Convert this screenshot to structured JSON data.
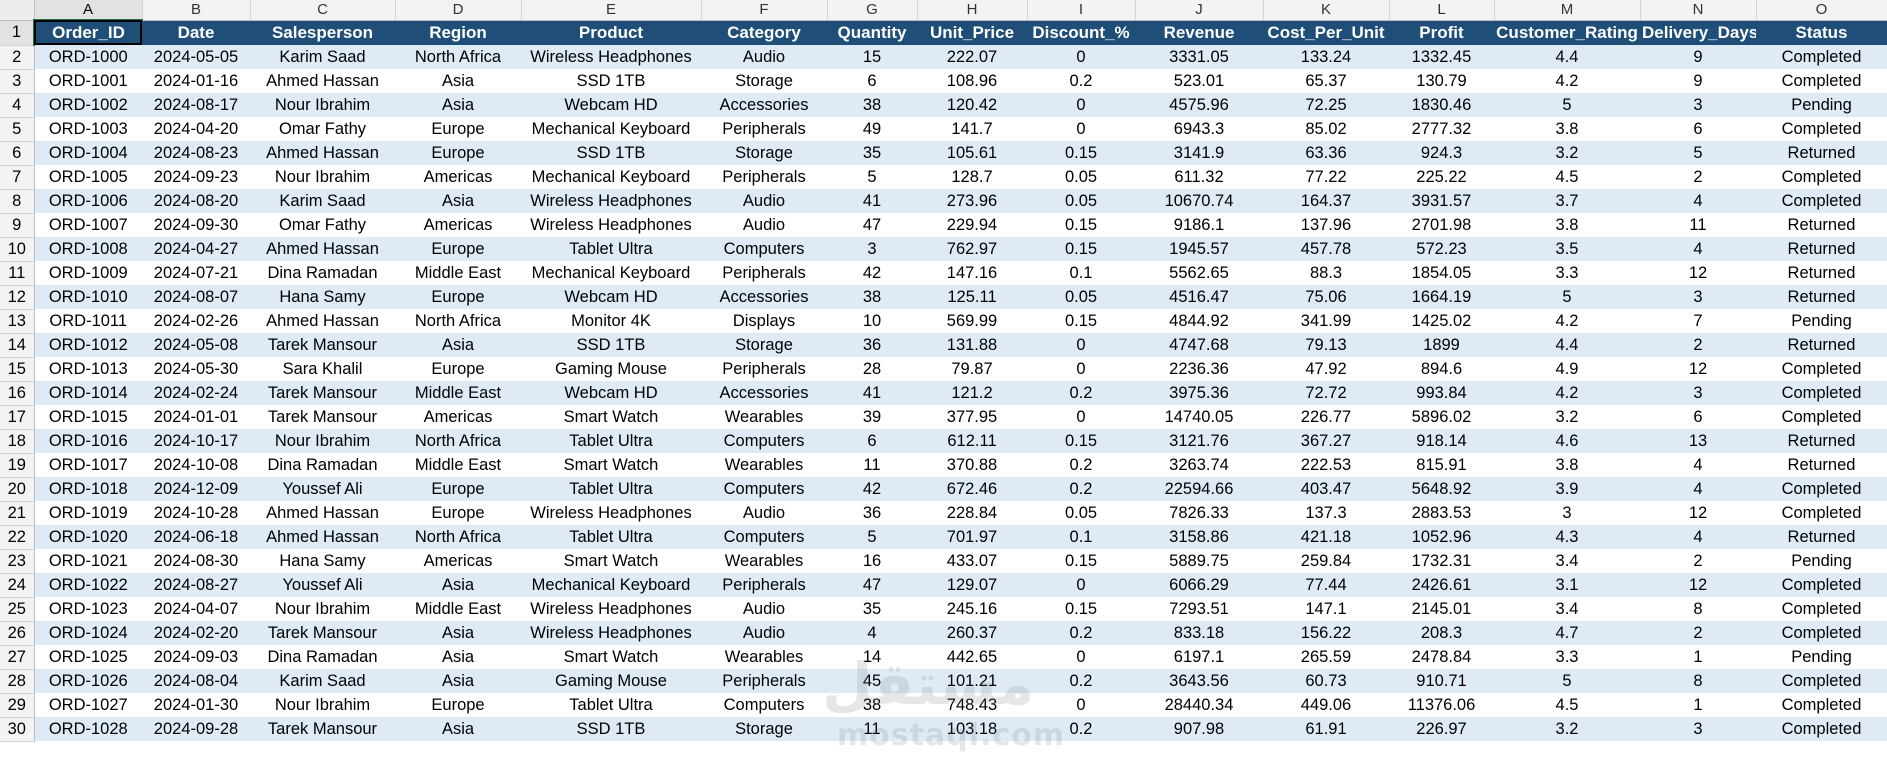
{
  "spreadsheet": {
    "column_letters": [
      "A",
      "B",
      "C",
      "D",
      "E",
      "F",
      "G",
      "H",
      "I",
      "J",
      "K",
      "L",
      "M",
      "N",
      "O"
    ],
    "active_column": "A",
    "active_row": 1,
    "headers": [
      "Order_ID",
      "Date",
      "Salesperson",
      "Region",
      "Product",
      "Category",
      "Quantity",
      "Unit_Price",
      "Discount_%",
      "Revenue",
      "Cost_Per_Unit",
      "Profit",
      "Customer_Rating",
      "Delivery_Days",
      "Status"
    ],
    "rows": [
      {
        "num": 2,
        "cells": [
          "ORD-1000",
          "2024-05-05",
          "Karim Saad",
          "North Africa",
          "Wireless Headphones",
          "Audio",
          "15",
          "222.07",
          "0",
          "3331.05",
          "133.24",
          "1332.45",
          "4.4",
          "9",
          "Completed"
        ]
      },
      {
        "num": 3,
        "cells": [
          "ORD-1001",
          "2024-01-16",
          "Ahmed Hassan",
          "Asia",
          "SSD 1TB",
          "Storage",
          "6",
          "108.96",
          "0.2",
          "523.01",
          "65.37",
          "130.79",
          "4.2",
          "9",
          "Completed"
        ]
      },
      {
        "num": 4,
        "cells": [
          "ORD-1002",
          "2024-08-17",
          "Nour Ibrahim",
          "Asia",
          "Webcam HD",
          "Accessories",
          "38",
          "120.42",
          "0",
          "4575.96",
          "72.25",
          "1830.46",
          "5",
          "3",
          "Pending"
        ]
      },
      {
        "num": 5,
        "cells": [
          "ORD-1003",
          "2024-04-20",
          "Omar Fathy",
          "Europe",
          "Mechanical Keyboard",
          "Peripherals",
          "49",
          "141.7",
          "0",
          "6943.3",
          "85.02",
          "2777.32",
          "3.8",
          "6",
          "Completed"
        ]
      },
      {
        "num": 6,
        "cells": [
          "ORD-1004",
          "2024-08-23",
          "Ahmed Hassan",
          "Europe",
          "SSD 1TB",
          "Storage",
          "35",
          "105.61",
          "0.15",
          "3141.9",
          "63.36",
          "924.3",
          "3.2",
          "5",
          "Returned"
        ]
      },
      {
        "num": 7,
        "cells": [
          "ORD-1005",
          "2024-09-23",
          "Nour Ibrahim",
          "Americas",
          "Mechanical Keyboard",
          "Peripherals",
          "5",
          "128.7",
          "0.05",
          "611.32",
          "77.22",
          "225.22",
          "4.5",
          "2",
          "Completed"
        ]
      },
      {
        "num": 8,
        "cells": [
          "ORD-1006",
          "2024-08-20",
          "Karim Saad",
          "Asia",
          "Wireless Headphones",
          "Audio",
          "41",
          "273.96",
          "0.05",
          "10670.74",
          "164.37",
          "3931.57",
          "3.7",
          "4",
          "Completed"
        ]
      },
      {
        "num": 9,
        "cells": [
          "ORD-1007",
          "2024-09-30",
          "Omar Fathy",
          "Americas",
          "Wireless Headphones",
          "Audio",
          "47",
          "229.94",
          "0.15",
          "9186.1",
          "137.96",
          "2701.98",
          "3.8",
          "11",
          "Returned"
        ]
      },
      {
        "num": 10,
        "cells": [
          "ORD-1008",
          "2024-04-27",
          "Ahmed Hassan",
          "Europe",
          "Tablet Ultra",
          "Computers",
          "3",
          "762.97",
          "0.15",
          "1945.57",
          "457.78",
          "572.23",
          "3.5",
          "4",
          "Returned"
        ]
      },
      {
        "num": 11,
        "cells": [
          "ORD-1009",
          "2024-07-21",
          "Dina Ramadan",
          "Middle East",
          "Mechanical Keyboard",
          "Peripherals",
          "42",
          "147.16",
          "0.1",
          "5562.65",
          "88.3",
          "1854.05",
          "3.3",
          "12",
          "Returned"
        ]
      },
      {
        "num": 12,
        "cells": [
          "ORD-1010",
          "2024-08-07",
          "Hana Samy",
          "Europe",
          "Webcam HD",
          "Accessories",
          "38",
          "125.11",
          "0.05",
          "4516.47",
          "75.06",
          "1664.19",
          "5",
          "3",
          "Returned"
        ]
      },
      {
        "num": 13,
        "cells": [
          "ORD-1011",
          "2024-02-26",
          "Ahmed Hassan",
          "North Africa",
          "Monitor 4K",
          "Displays",
          "10",
          "569.99",
          "0.15",
          "4844.92",
          "341.99",
          "1425.02",
          "4.2",
          "7",
          "Pending"
        ]
      },
      {
        "num": 14,
        "cells": [
          "ORD-1012",
          "2024-05-08",
          "Tarek Mansour",
          "Asia",
          "SSD 1TB",
          "Storage",
          "36",
          "131.88",
          "0",
          "4747.68",
          "79.13",
          "1899",
          "4.4",
          "2",
          "Returned"
        ]
      },
      {
        "num": 15,
        "cells": [
          "ORD-1013",
          "2024-05-30",
          "Sara Khalil",
          "Europe",
          "Gaming Mouse",
          "Peripherals",
          "28",
          "79.87",
          "0",
          "2236.36",
          "47.92",
          "894.6",
          "4.9",
          "12",
          "Completed"
        ]
      },
      {
        "num": 16,
        "cells": [
          "ORD-1014",
          "2024-02-24",
          "Tarek Mansour",
          "Middle East",
          "Webcam HD",
          "Accessories",
          "41",
          "121.2",
          "0.2",
          "3975.36",
          "72.72",
          "993.84",
          "4.2",
          "3",
          "Completed"
        ]
      },
      {
        "num": 17,
        "cells": [
          "ORD-1015",
          "2024-01-01",
          "Tarek Mansour",
          "Americas",
          "Smart Watch",
          "Wearables",
          "39",
          "377.95",
          "0",
          "14740.05",
          "226.77",
          "5896.02",
          "3.2",
          "6",
          "Completed"
        ]
      },
      {
        "num": 18,
        "cells": [
          "ORD-1016",
          "2024-10-17",
          "Nour Ibrahim",
          "North Africa",
          "Tablet Ultra",
          "Computers",
          "6",
          "612.11",
          "0.15",
          "3121.76",
          "367.27",
          "918.14",
          "4.6",
          "13",
          "Returned"
        ]
      },
      {
        "num": 19,
        "cells": [
          "ORD-1017",
          "2024-10-08",
          "Dina Ramadan",
          "Middle East",
          "Smart Watch",
          "Wearables",
          "11",
          "370.88",
          "0.2",
          "3263.74",
          "222.53",
          "815.91",
          "3.8",
          "4",
          "Returned"
        ]
      },
      {
        "num": 20,
        "cells": [
          "ORD-1018",
          "2024-12-09",
          "Youssef Ali",
          "Europe",
          "Tablet Ultra",
          "Computers",
          "42",
          "672.46",
          "0.2",
          "22594.66",
          "403.47",
          "5648.92",
          "3.9",
          "4",
          "Completed"
        ]
      },
      {
        "num": 21,
        "cells": [
          "ORD-1019",
          "2024-10-28",
          "Ahmed Hassan",
          "Europe",
          "Wireless Headphones",
          "Audio",
          "36",
          "228.84",
          "0.05",
          "7826.33",
          "137.3",
          "2883.53",
          "3",
          "12",
          "Completed"
        ]
      },
      {
        "num": 22,
        "cells": [
          "ORD-1020",
          "2024-06-18",
          "Ahmed Hassan",
          "North Africa",
          "Tablet Ultra",
          "Computers",
          "5",
          "701.97",
          "0.1",
          "3158.86",
          "421.18",
          "1052.96",
          "4.3",
          "4",
          "Returned"
        ]
      },
      {
        "num": 23,
        "cells": [
          "ORD-1021",
          "2024-08-30",
          "Hana Samy",
          "Americas",
          "Smart Watch",
          "Wearables",
          "16",
          "433.07",
          "0.15",
          "5889.75",
          "259.84",
          "1732.31",
          "3.4",
          "2",
          "Pending"
        ]
      },
      {
        "num": 24,
        "cells": [
          "ORD-1022",
          "2024-08-27",
          "Youssef Ali",
          "Asia",
          "Mechanical Keyboard",
          "Peripherals",
          "47",
          "129.07",
          "0",
          "6066.29",
          "77.44",
          "2426.61",
          "3.1",
          "12",
          "Completed"
        ]
      },
      {
        "num": 25,
        "cells": [
          "ORD-1023",
          "2024-04-07",
          "Nour Ibrahim",
          "Middle East",
          "Wireless Headphones",
          "Audio",
          "35",
          "245.16",
          "0.15",
          "7293.51",
          "147.1",
          "2145.01",
          "3.4",
          "8",
          "Completed"
        ]
      },
      {
        "num": 26,
        "cells": [
          "ORD-1024",
          "2024-02-20",
          "Tarek Mansour",
          "Asia",
          "Wireless Headphones",
          "Audio",
          "4",
          "260.37",
          "0.2",
          "833.18",
          "156.22",
          "208.3",
          "4.7",
          "2",
          "Completed"
        ]
      },
      {
        "num": 27,
        "cells": [
          "ORD-1025",
          "2024-09-03",
          "Dina Ramadan",
          "Asia",
          "Smart Watch",
          "Wearables",
          "14",
          "442.65",
          "0",
          "6197.1",
          "265.59",
          "2478.84",
          "3.3",
          "1",
          "Pending"
        ]
      },
      {
        "num": 28,
        "cells": [
          "ORD-1026",
          "2024-08-04",
          "Karim Saad",
          "Asia",
          "Gaming Mouse",
          "Peripherals",
          "45",
          "101.21",
          "0.2",
          "3643.56",
          "60.73",
          "910.71",
          "5",
          "8",
          "Completed"
        ]
      },
      {
        "num": 29,
        "cells": [
          "ORD-1027",
          "2024-01-30",
          "Nour Ibrahim",
          "Europe",
          "Tablet Ultra",
          "Computers",
          "38",
          "748.43",
          "0",
          "28440.34",
          "449.06",
          "11376.06",
          "4.5",
          "1",
          "Completed"
        ]
      },
      {
        "num": 30,
        "cells": [
          "ORD-1028",
          "2024-09-28",
          "Tarek Mansour",
          "Asia",
          "SSD 1TB",
          "Storage",
          "11",
          "103.18",
          "0.2",
          "907.98",
          "61.91",
          "226.97",
          "3.2",
          "3",
          "Completed"
        ]
      }
    ]
  },
  "watermark": {
    "arabic": "مستقل",
    "latin": "mostaql.com"
  },
  "colors": {
    "header_fill": "#1f4e79",
    "header_text": "#ffffff",
    "band_fill": "#deebf7",
    "selection": "#217346"
  }
}
